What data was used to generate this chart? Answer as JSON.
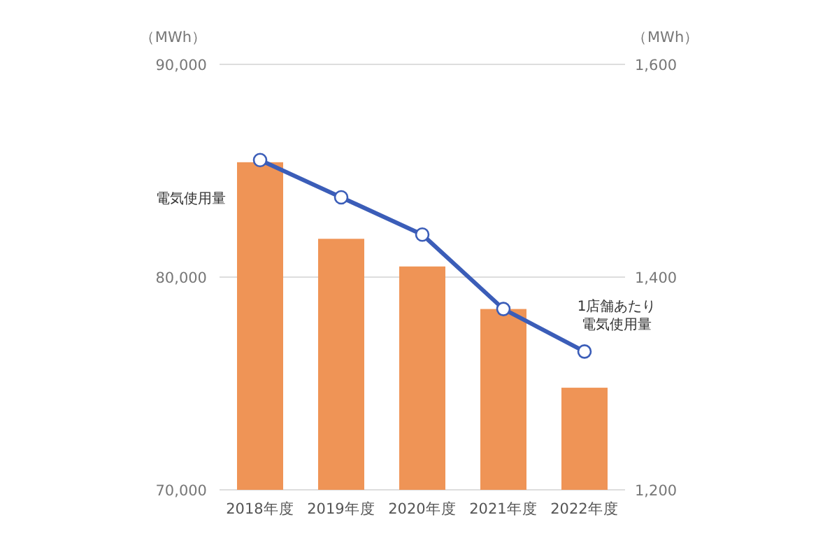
{
  "chart_data": {
    "type": "bar",
    "categories": [
      "2018年度",
      "2019年度",
      "2020年度",
      "2021年度",
      "2022年度"
    ],
    "ylabel": "（MWh）",
    "y2label": "（MWh）",
    "ylim": [
      70000,
      90000
    ],
    "yticks": [
      {
        "value": 70000,
        "label": "70,000"
      },
      {
        "value": 80000,
        "label": "80,000"
      },
      {
        "value": 90000,
        "label": "90,000"
      }
    ],
    "y2lim": [
      1200,
      1600
    ],
    "y2ticks": [
      {
        "value": 1200,
        "label": "1,200"
      },
      {
        "value": 1400,
        "label": "1,400"
      },
      {
        "value": 1600,
        "label": "1,600"
      }
    ],
    "grid": "y",
    "marker": "circle",
    "series": [
      {
        "name": "電気使用量",
        "color": "#ef9456",
        "values": [
          85400,
          81800,
          80500,
          78500,
          74800
        ]
      },
      {
        "name": "1店舗あたり電気使用量",
        "type": "line",
        "axis": "y2",
        "color": "#3b5db8",
        "values": [
          1510,
          1475,
          1440,
          1370,
          1330
        ]
      }
    ]
  }
}
